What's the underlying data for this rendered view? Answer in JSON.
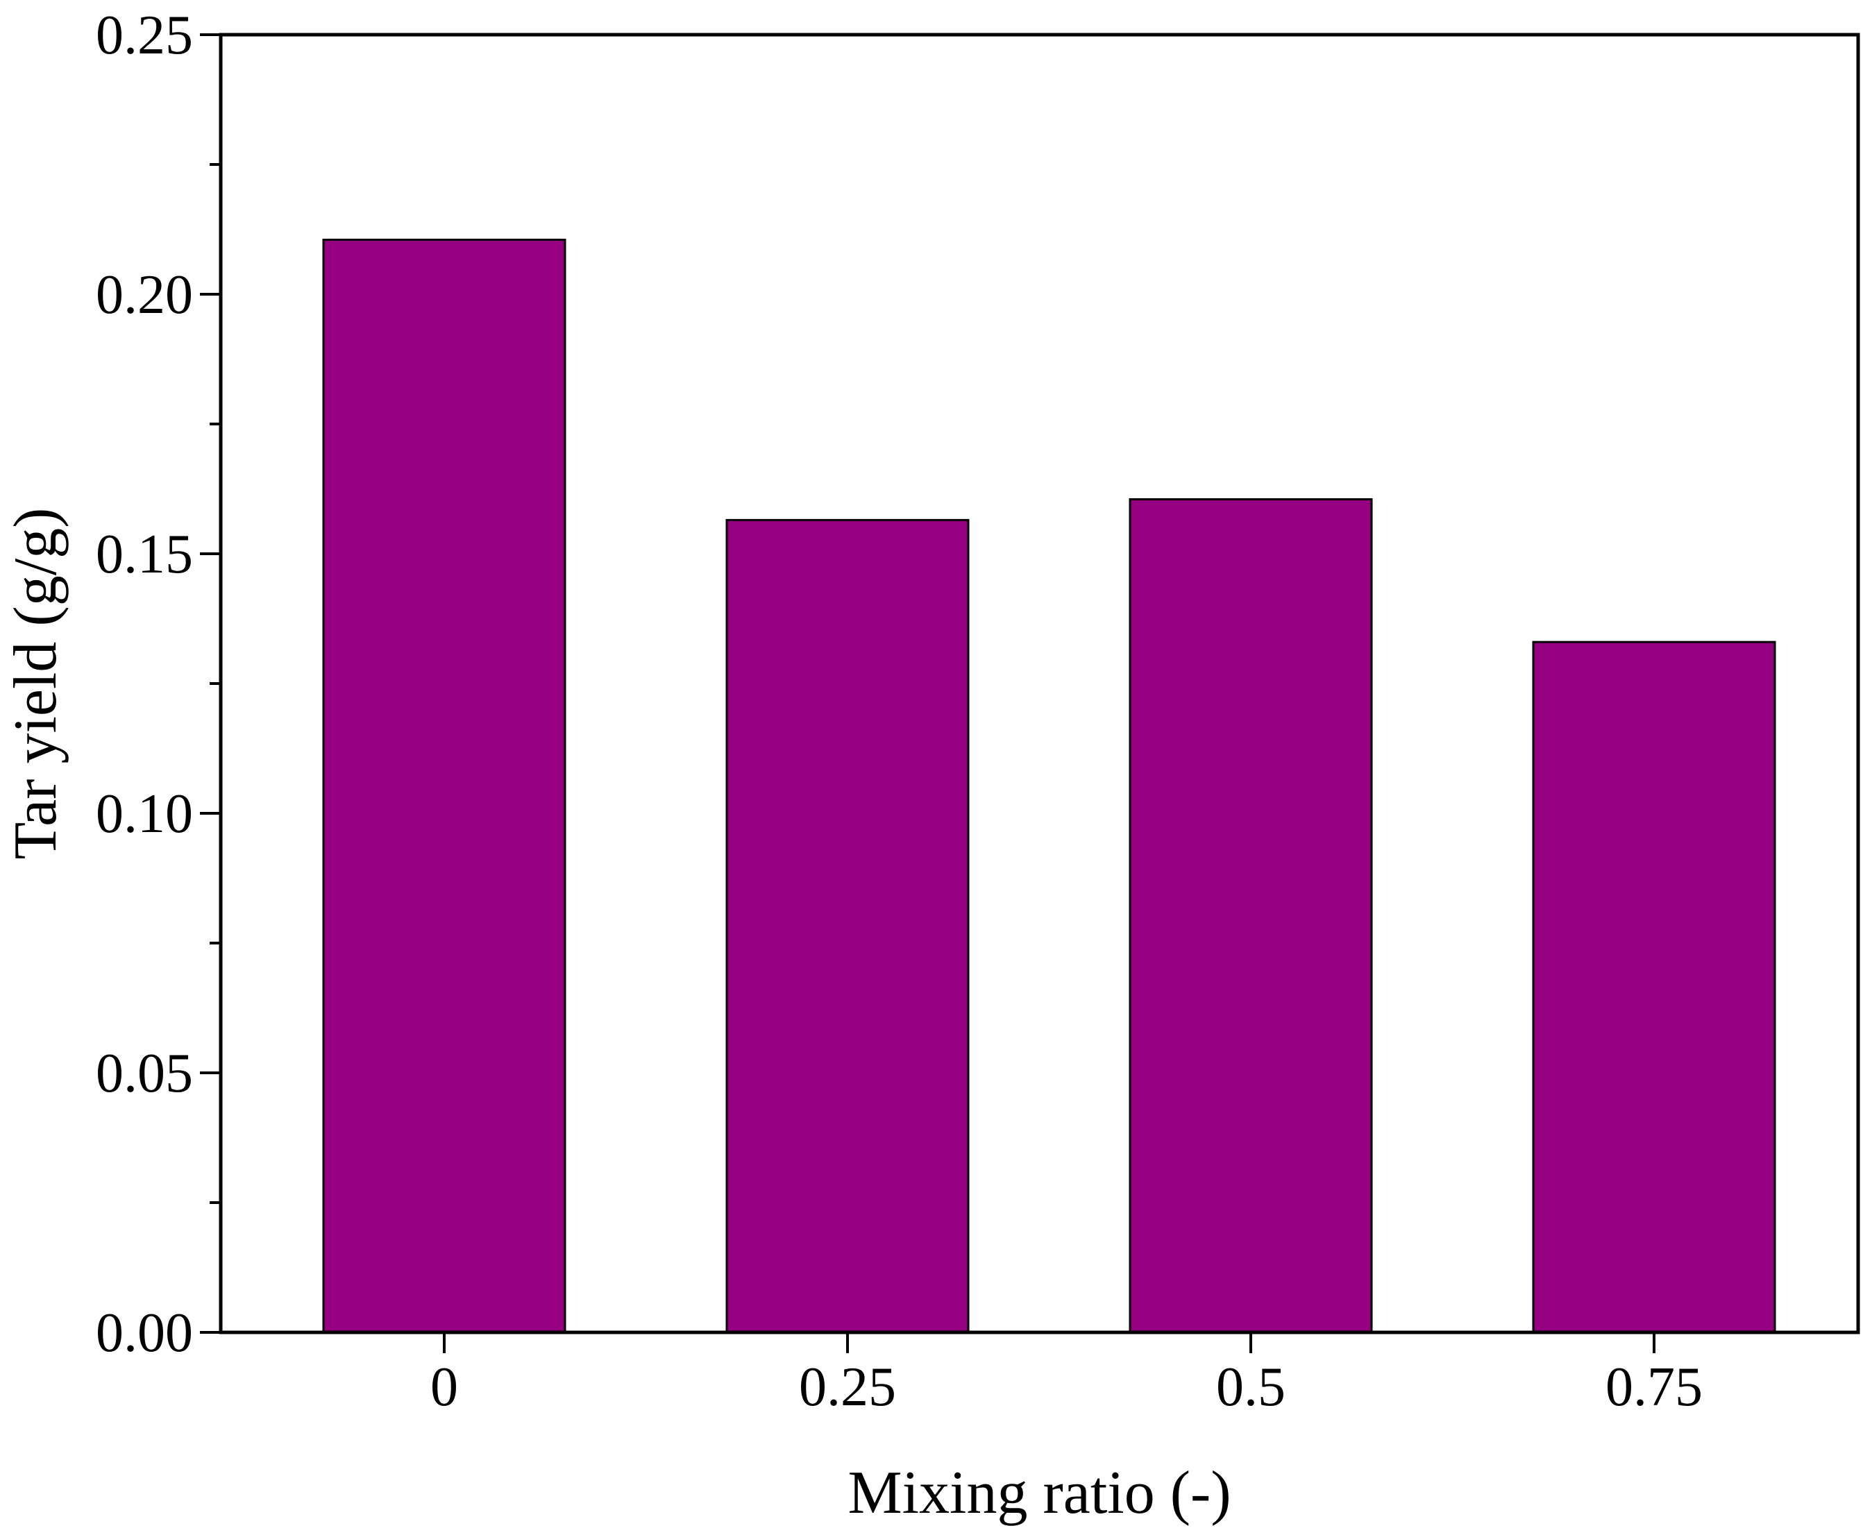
{
  "chart_data": {
    "type": "bar",
    "title": "",
    "xlabel": "Mixing ratio (-)",
    "ylabel": "Tar yield (g/g)",
    "categories": [
      "0",
      "0.25",
      "0.5",
      "0.75"
    ],
    "values": [
      0.2105,
      0.1565,
      0.1605,
      0.133
    ],
    "ylim": [
      0,
      0.25
    ],
    "yticks": [
      "0.00",
      "0.05",
      "0.10",
      "0.15",
      "0.20",
      "0.25"
    ],
    "grid": false,
    "legend": "none",
    "colors": {
      "bar": "#950082",
      "axis": "#000000"
    }
  }
}
